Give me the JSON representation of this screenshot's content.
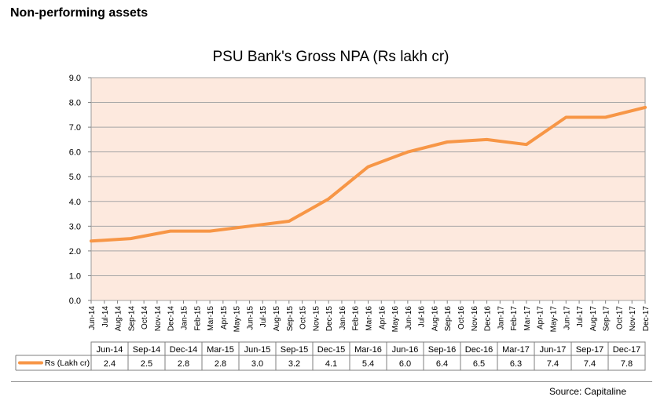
{
  "page_heading": "Non-performing assets",
  "source": "Source: Capitaline",
  "chart_data": {
    "type": "line",
    "title": "PSU Bank's Gross NPA (Rs lakh cr)",
    "xlabel": "",
    "ylabel": "",
    "ylim": [
      0,
      9
    ],
    "yticks": [
      "0.0",
      "1.0",
      "2.0",
      "3.0",
      "4.0",
      "5.0",
      "6.0",
      "7.0",
      "8.0",
      "9.0"
    ],
    "grid": true,
    "x": [
      "Jun-14",
      "Jul-14",
      "Aug-14",
      "Sep-14",
      "Oct-14",
      "Nov-14",
      "Dec-14",
      "Jan-15",
      "Feb-15",
      "Mar-15",
      "Apr-15",
      "May-15",
      "Jun-15",
      "Jul-15",
      "Aug-15",
      "Sep-15",
      "Oct-15",
      "Nov-15",
      "Dec-15",
      "Jan-16",
      "Feb-16",
      "Mar-16",
      "Apr-16",
      "May-16",
      "Jun-16",
      "Jul-16",
      "Aug-16",
      "Sep-16",
      "Oct-16",
      "Nov-16",
      "Dec-16",
      "Jan-17",
      "Feb-17",
      "Mar-17",
      "Apr-17",
      "May-17",
      "Jun-17",
      "Jul-17",
      "Aug-17",
      "Sep-17",
      "Oct-17",
      "Nov-17",
      "Dec-17"
    ],
    "series": [
      {
        "name": "Rs (Lakh cr)",
        "color": "#f79646",
        "points": [
          {
            "x": "Jun-14",
            "y": 2.4
          },
          {
            "x": "Sep-14",
            "y": 2.5
          },
          {
            "x": "Dec-14",
            "y": 2.8
          },
          {
            "x": "Mar-15",
            "y": 2.8
          },
          {
            "x": "Jun-15",
            "y": 3.0
          },
          {
            "x": "Sep-15",
            "y": 3.2
          },
          {
            "x": "Dec-15",
            "y": 4.1
          },
          {
            "x": "Mar-16",
            "y": 5.4
          },
          {
            "x": "Jun-16",
            "y": 6.0
          },
          {
            "x": "Sep-16",
            "y": 6.4
          },
          {
            "x": "Dec-16",
            "y": 6.5
          },
          {
            "x": "Mar-17",
            "y": 6.3
          },
          {
            "x": "Jun-17",
            "y": 7.4
          },
          {
            "x": "Sep-17",
            "y": 7.4
          },
          {
            "x": "Dec-17",
            "y": 7.8
          }
        ]
      }
    ],
    "table": {
      "header": [
        "Jun-14",
        "Sep-14",
        "Dec-14",
        "Mar-15",
        "Jun-15",
        "Sep-15",
        "Dec-15",
        "Mar-16",
        "Jun-16",
        "Sep-16",
        "Dec-16",
        "Mar-17",
        "Jun-17",
        "Sep-17",
        "Dec-17"
      ],
      "row_label": "Rs (Lakh cr)",
      "values": [
        "2.4",
        "2.5",
        "2.8",
        "2.8",
        "3.0",
        "3.2",
        "4.1",
        "5.4",
        "6.0",
        "6.4",
        "6.5",
        "6.3",
        "7.4",
        "7.4",
        "7.8"
      ]
    },
    "plot_background": "#fde9de",
    "line_color": "#f79646"
  }
}
